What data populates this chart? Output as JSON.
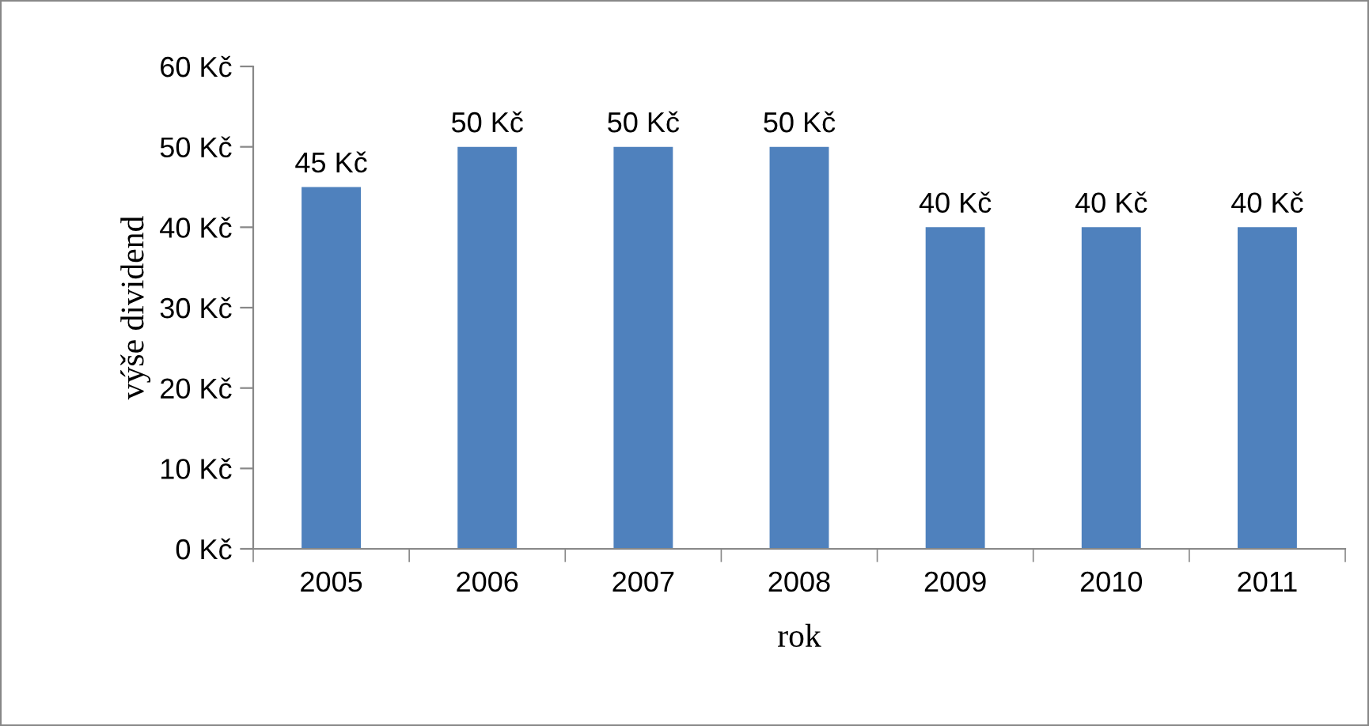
{
  "chart_data": {
    "type": "bar",
    "categories": [
      "2005",
      "2006",
      "2007",
      "2008",
      "2009",
      "2010",
      "2011"
    ],
    "values": [
      45,
      50,
      50,
      50,
      40,
      40,
      40
    ],
    "value_labels": [
      "45 Kč",
      "50 Kč",
      "50 Kč",
      "50 Kč",
      "40 Kč",
      "40 Kč",
      "40 Kč"
    ],
    "color": "#4f81bd",
    "xlabel": "rok",
    "ylabel": "výše dividend",
    "ylim": [
      0,
      60
    ],
    "yticks": [
      {
        "value": 0,
        "label": "0 Kč"
      },
      {
        "value": 10,
        "label": "10 Kč"
      },
      {
        "value": 20,
        "label": "20 Kč"
      },
      {
        "value": 30,
        "label": "30 Kč"
      },
      {
        "value": 40,
        "label": "40 Kč"
      },
      {
        "value": 50,
        "label": "50 Kč"
      },
      {
        "value": 60,
        "label": "60 Kč"
      }
    ],
    "grid": false,
    "legend": false
  }
}
